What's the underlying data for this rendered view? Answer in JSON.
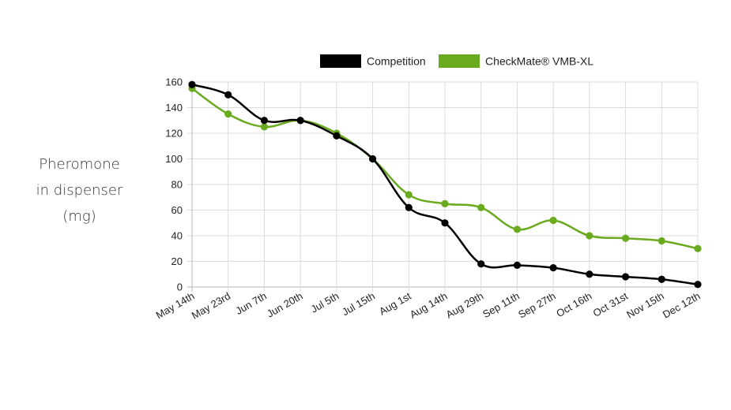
{
  "chart_data": {
    "type": "line",
    "ylabel_lines": [
      "Pheromone",
      "in dispenser",
      "(mg)"
    ],
    "categories": [
      "May 14th",
      "May 23rd",
      "Jun 7th",
      "Jun 20th",
      "Jul 5th",
      "Jul 15th",
      "Aug 1st",
      "Aug 14th",
      "Aug 29th",
      "Sep 11th",
      "Sep 27th",
      "Oct 16th",
      "Oct 31st",
      "Nov 15th",
      "Dec 12th"
    ],
    "ylim": [
      0,
      160
    ],
    "yticks": [
      0,
      20,
      40,
      60,
      80,
      100,
      120,
      140,
      160
    ],
    "grid": true,
    "legend_position": "top-center",
    "series": [
      {
        "name": "Competition",
        "color": "#000000",
        "values": [
          158,
          150,
          130,
          130,
          118,
          100,
          62,
          50,
          18,
          17,
          15,
          10,
          8,
          6,
          2
        ]
      },
      {
        "name": "CheckMate® VMB-XL",
        "color": "#6aaa1e",
        "values": [
          155,
          135,
          125,
          130,
          120,
          100,
          72,
          65,
          62,
          45,
          52,
          40,
          38,
          36,
          30
        ]
      }
    ]
  }
}
